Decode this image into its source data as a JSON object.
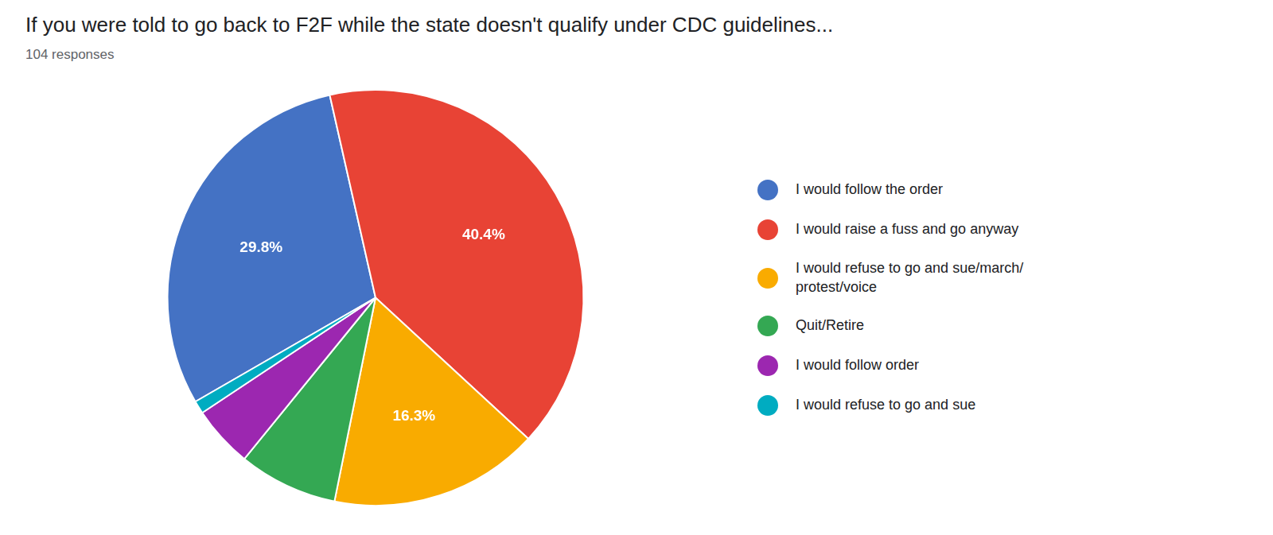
{
  "chart_data": {
    "type": "pie",
    "title": "If you were told to go back to F2F while the state doesn't qualify under CDC guidelines...",
    "subtitle": "104 responses",
    "categories": [
      "I would follow the order",
      "I would raise a fuss and go anyway",
      "I would refuse to go and sue/march/\nprotest/voice",
      "Quit/Retire",
      "I would follow order",
      "I would refuse to go and sue"
    ],
    "values": [
      29.8,
      40.4,
      16.3,
      7.7,
      4.8,
      1.0
    ],
    "value_labels": [
      "29.8%",
      "40.4%",
      "16.3%",
      null,
      null,
      null
    ],
    "data_labels": true,
    "colors": [
      "#4472C4",
      "#E84335",
      "#F9AB00",
      "#34A853",
      "#9C27B0",
      "#00ACC1"
    ],
    "legend": "right"
  }
}
